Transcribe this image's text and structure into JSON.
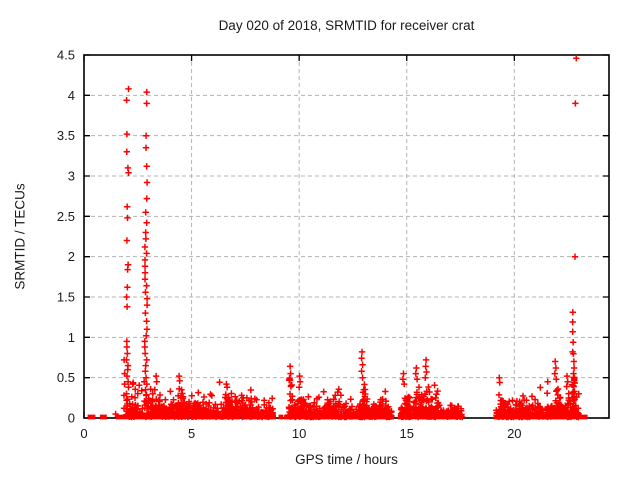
{
  "chart_data": {
    "type": "scatter",
    "title": "Day 020 of 2018, SRMTID for receiver crat",
    "xlabel": "GPS time / hours",
    "ylabel": "SRMTID / TECUs",
    "xlim": [
      0,
      24.4
    ],
    "ylim": [
      0,
      4.5
    ],
    "xticks": [
      0,
      5,
      10,
      15,
      20
    ],
    "xtick_labels": [
      "0",
      "5",
      "10",
      "15",
      "20"
    ],
    "yticks": [
      0,
      0.5,
      1,
      1.5,
      2,
      2.5,
      3,
      3.5,
      4,
      4.5
    ],
    "ytick_labels": [
      "0",
      "0.5",
      "1",
      "1.5",
      "2",
      "2.5",
      "3",
      "3.5",
      "4",
      "4.5"
    ],
    "grid": "dashed",
    "legend": "none",
    "marker": "plus",
    "marker_color": "#ff0000",
    "grid_color": "#b3b3b3",
    "axis_color": "#000000",
    "seed": 20,
    "columns": [
      {
        "x": 2.02,
        "jitter": 0.05,
        "ys": [
          4.08,
          3.94,
          3.52,
          3.3,
          3.1,
          3.04,
          2.62,
          2.48,
          2.2,
          1.9,
          1.84,
          1.62,
          1.5,
          1.38,
          0.95,
          0.88,
          0.8,
          0.72,
          0.65,
          0.6,
          0.52,
          0.45,
          0.38,
          0.3,
          0.22,
          0.15,
          0.08
        ]
      },
      {
        "x": 1.88,
        "jitter": 0.03,
        "ys": [
          0.72,
          0.55,
          0.42,
          0.28,
          0.12
        ]
      },
      {
        "x": 2.88,
        "jitter": 0.06,
        "ys": [
          4.04,
          3.9,
          3.5,
          3.35,
          3.12,
          2.92,
          2.72,
          2.55,
          2.42,
          2.3,
          2.22,
          2.12,
          2.04,
          1.96,
          1.88,
          1.8,
          1.72,
          1.64,
          1.56,
          1.48,
          1.4,
          1.3,
          1.2,
          1.1,
          1.02,
          0.95,
          0.88,
          0.8,
          0.72,
          0.65,
          0.58,
          0.5,
          0.42,
          0.35,
          0.28,
          0.2,
          0.12,
          0.06
        ]
      },
      {
        "x": 22.74,
        "jitter": 0.04,
        "ys": [
          1.31,
          1.19,
          1.07,
          0.94,
          0.82,
          0.7,
          0.62,
          0.55,
          0.48,
          0.4,
          0.32,
          0.25,
          0.18,
          0.1
        ]
      }
    ],
    "points": [
      [
        22.88,
        4.46
      ],
      [
        22.84,
        3.9
      ],
      [
        22.82,
        2.0
      ],
      [
        3.35,
        0.52
      ],
      [
        3.38,
        0.45
      ],
      [
        4.42,
        0.52
      ],
      [
        4.45,
        0.46
      ],
      [
        6.62,
        0.42
      ],
      [
        6.65,
        0.38
      ],
      [
        9.58,
        0.64
      ],
      [
        9.6,
        0.55
      ],
      [
        9.55,
        0.48
      ],
      [
        9.62,
        0.4
      ],
      [
        10.02,
        0.52
      ],
      [
        10.05,
        0.45
      ],
      [
        10.0,
        0.38
      ],
      [
        12.92,
        0.82
      ],
      [
        12.9,
        0.74
      ],
      [
        12.95,
        0.66
      ],
      [
        12.9,
        0.58
      ],
      [
        12.95,
        0.5
      ],
      [
        14.85,
        0.55
      ],
      [
        14.82,
        0.48
      ],
      [
        14.88,
        0.42
      ],
      [
        15.45,
        0.62
      ],
      [
        15.42,
        0.55
      ],
      [
        15.48,
        0.48
      ],
      [
        15.9,
        0.72
      ],
      [
        15.88,
        0.64
      ],
      [
        15.92,
        0.57
      ],
      [
        15.86,
        0.5
      ],
      [
        19.3,
        0.5
      ],
      [
        19.32,
        0.44
      ],
      [
        21.55,
        0.45
      ],
      [
        21.9,
        0.7
      ],
      [
        21.93,
        0.62
      ],
      [
        21.88,
        0.55
      ],
      [
        21.95,
        0.48
      ],
      [
        22.45,
        0.52
      ],
      [
        22.48,
        0.45
      ],
      [
        1.47,
        0.05
      ]
    ],
    "noise_bands": [
      {
        "x0": 1.95,
        "x1": 4.15,
        "n": 170,
        "scale": 0.09,
        "ymax": 0.5
      },
      {
        "x0": 4.15,
        "x1": 8.8,
        "n": 310,
        "scale": 0.07,
        "ymax": 0.45
      },
      {
        "x0": 9.5,
        "x1": 14.3,
        "n": 390,
        "scale": 0.06,
        "ymax": 0.4
      },
      {
        "x0": 14.7,
        "x1": 16.6,
        "n": 170,
        "scale": 0.07,
        "ymax": 0.5
      },
      {
        "x0": 16.6,
        "x1": 17.6,
        "n": 60,
        "scale": 0.04,
        "ymax": 0.2
      },
      {
        "x0": 19.15,
        "x1": 21.35,
        "n": 180,
        "scale": 0.06,
        "ymax": 0.4
      },
      {
        "x0": 21.45,
        "x1": 23.0,
        "n": 120,
        "scale": 0.07,
        "ymax": 0.45
      }
    ],
    "bumps": [
      {
        "xc": 3.35,
        "w": 0.5,
        "h": 0.5,
        "n": 25
      },
      {
        "xc": 4.4,
        "w": 0.55,
        "h": 0.52,
        "n": 25
      },
      {
        "xc": 5.05,
        "w": 0.5,
        "h": 0.35,
        "n": 18
      },
      {
        "xc": 6.6,
        "w": 0.5,
        "h": 0.42,
        "n": 22
      },
      {
        "xc": 7.35,
        "w": 0.6,
        "h": 0.3,
        "n": 18
      },
      {
        "xc": 9.55,
        "w": 0.35,
        "h": 0.62,
        "n": 16
      },
      {
        "xc": 10.0,
        "w": 0.4,
        "h": 0.5,
        "n": 16
      },
      {
        "xc": 11.3,
        "w": 0.5,
        "h": 0.28,
        "n": 14
      },
      {
        "xc": 12.9,
        "w": 0.3,
        "h": 0.8,
        "n": 18
      },
      {
        "xc": 13.6,
        "w": 0.45,
        "h": 0.38,
        "n": 14
      },
      {
        "xc": 14.85,
        "w": 0.4,
        "h": 0.55,
        "n": 16
      },
      {
        "xc": 15.45,
        "w": 0.35,
        "h": 0.6,
        "n": 16
      },
      {
        "xc": 15.9,
        "w": 0.45,
        "h": 0.7,
        "n": 18
      },
      {
        "xc": 16.3,
        "w": 0.4,
        "h": 0.45,
        "n": 12
      },
      {
        "xc": 19.3,
        "w": 0.4,
        "h": 0.5,
        "n": 16
      },
      {
        "xc": 20.0,
        "w": 0.5,
        "h": 0.3,
        "n": 12
      },
      {
        "xc": 21.55,
        "w": 0.3,
        "h": 0.45,
        "n": 12
      },
      {
        "xc": 21.95,
        "w": 0.3,
        "h": 0.72,
        "n": 16
      },
      {
        "xc": 22.45,
        "w": 0.25,
        "h": 0.5,
        "n": 10
      },
      {
        "xc": 22.72,
        "w": 0.15,
        "h": 1.2,
        "n": 14
      }
    ],
    "zero_runs": [
      [
        1.6,
        1.95
      ],
      [
        1.95,
        4.15
      ],
      [
        4.3,
        4.8
      ],
      [
        5.0,
        8.85
      ],
      [
        9.15,
        9.45
      ],
      [
        9.5,
        14.3
      ],
      [
        14.7,
        17.35
      ],
      [
        19.15,
        21.35
      ],
      [
        21.45,
        23.05
      ],
      [
        23.1,
        23.35
      ]
    ],
    "zero_singles": [
      0.28,
      0.42,
      0.85,
      0.95
    ]
  }
}
